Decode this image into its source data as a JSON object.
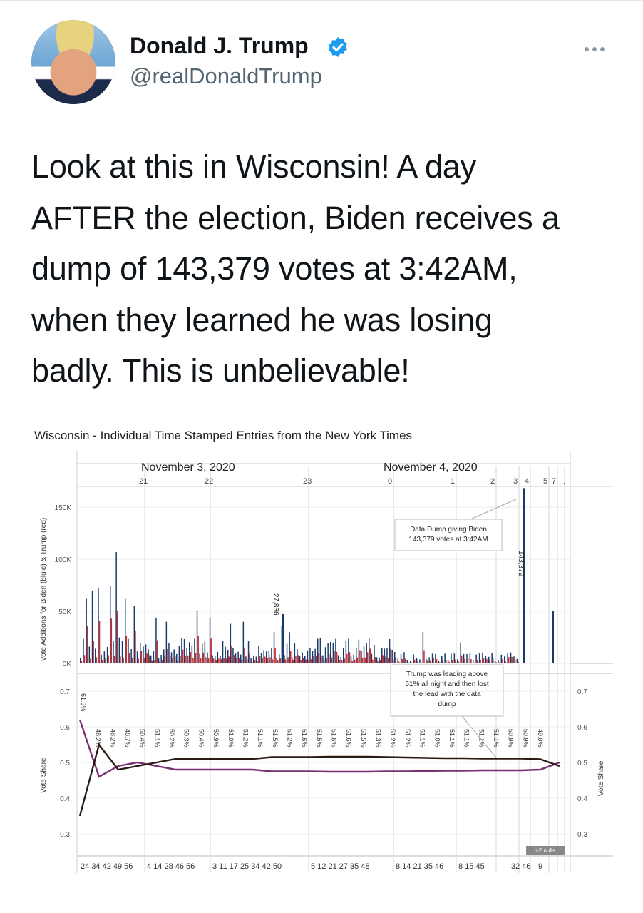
{
  "tweet": {
    "display_name": "Donald J. Trump",
    "handle": "@realDonaldTrump",
    "text": "Look at this in Wisconsin! A day\nAFTER the election, Biden receives a\ndump of 143,379 votes at 3:42AM,\nwhen they learned he was losing\nbadly. This is unbelievable!",
    "verified_color": "#1d9bf0"
  },
  "chart_data": {
    "type": "bar",
    "title": "Wisconsin - Individual Time Stamped Entries from the New York Times",
    "date_labels": [
      "November 3, 2020",
      "November 4, 2020"
    ],
    "hour_labels": [
      "21",
      "22",
      "23",
      "0",
      "1",
      "2",
      "3",
      "4",
      "5",
      "7",
      "..."
    ],
    "ylabel_top": "Vote Additions for Biden (bluie) & Trump (red)",
    "ylabel_bottom": "Vote Share",
    "ylabel_bottom_right": "Vote Share",
    "top_yticks": [
      "150K",
      "100K",
      "50K",
      "0K"
    ],
    "bottom_yticks": [
      "0.7",
      "0.6",
      "0.5",
      "0.4",
      "0.3"
    ],
    "bottom_ylim": [
      0.25,
      0.75
    ],
    "top_ylim": [
      0,
      170000
    ],
    "annotation_dump": "Data Dump giving Biden\n143,379 votes at 3:42AM",
    "annotation_trump": "Trump was leading above\n51% all night and then lost\nthe lead with the data\ndump",
    "bar_label_big": "143,379",
    "bar_label_mid": "27,836",
    "nulls_label": ">2 nulls",
    "minute_labels": [
      "24 34 42 49 56",
      "4 14 28 46 56",
      "3 11 17 25 34 42 50",
      "5 12 21 27 35 48",
      "8 14 21 35 46",
      "8 15 45",
      "32 46",
      "9"
    ],
    "share_labels": [
      "61.9%",
      "48.2%",
      "48.2%",
      "48.7%",
      "50.4%",
      "51.1%",
      "50.2%",
      "50.3%",
      "50.4%",
      "50.9%",
      "51.0%",
      "51.2%",
      "51.1%",
      "51.5%",
      "51.2%",
      "51.6%",
      "51.5%",
      "51.6%",
      "51.6%",
      "51.5%",
      "51.3%",
      "51.2%",
      "51.2%",
      "51.1%",
      "51.0%",
      "51.1%",
      "51.1%",
      "51.1%",
      "51.1%",
      "50.9%",
      "50.9%",
      "49.0%"
    ],
    "trump_share_approx": [
      0.35,
      0.55,
      0.48,
      0.49,
      0.5,
      0.51,
      0.51,
      0.51,
      0.51,
      0.51,
      0.515,
      0.515,
      0.515,
      0.516,
      0.516,
      0.516,
      0.515,
      0.514,
      0.513,
      0.512,
      0.512,
      0.511,
      0.511,
      0.511,
      0.509,
      0.49
    ],
    "biden_share_approx": [
      0.62,
      0.46,
      0.49,
      0.5,
      0.49,
      0.48,
      0.48,
      0.48,
      0.48,
      0.48,
      0.475,
      0.475,
      0.475,
      0.474,
      0.474,
      0.474,
      0.475,
      0.475,
      0.476,
      0.477,
      0.477,
      0.478,
      0.478,
      0.478,
      0.48,
      0.5
    ],
    "big_dump_value": 143379,
    "mid_bar_value": 27836,
    "colors": {
      "biden": "#1a3a6b",
      "trump": "#d12a2a",
      "trump_line": "#2b1b14",
      "biden_line": "#7a2f73"
    }
  }
}
